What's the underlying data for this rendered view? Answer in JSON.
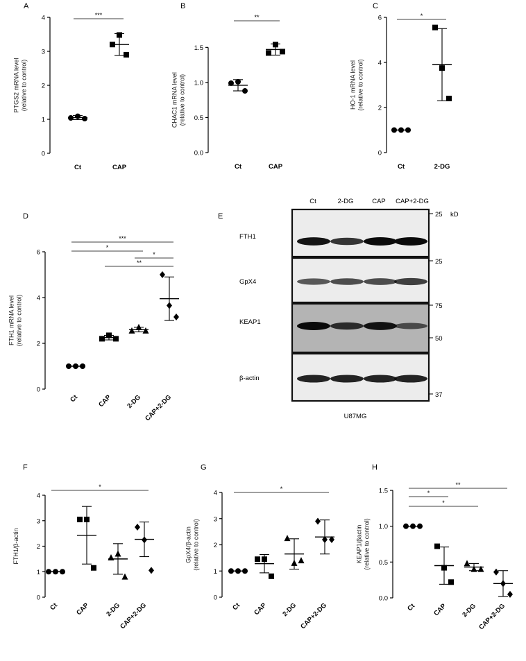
{
  "charts": [
    {
      "id": "A",
      "letter": "A",
      "type": "scatter",
      "ylabel_lines": [
        "PTGS2 mRNA level",
        "(relative to control)"
      ],
      "categories": [
        "Ct",
        "CAP"
      ],
      "ylim": [
        0,
        4
      ],
      "yticks": [
        0,
        1,
        2,
        3,
        4
      ],
      "tick_format": "int",
      "markers": [
        "circle",
        "square"
      ],
      "points": [
        [
          1.04,
          1.09,
          1.02
        ],
        [
          3.2,
          3.48,
          2.9
        ]
      ],
      "mean": [
        1.05,
        3.2
      ],
      "sd": [
        0.06,
        0.32
      ],
      "significance": [
        {
          "from": 0,
          "to": 1,
          "label": "***"
        }
      ],
      "rotate_labels": false
    },
    {
      "id": "B",
      "letter": "B",
      "type": "scatter",
      "ylabel_lines": [
        "CHAC1 mRNA level",
        "(relative to control)"
      ],
      "categories": [
        "Ct",
        "CAP"
      ],
      "ylim": [
        0,
        1.8
      ],
      "yticks": [
        0,
        0.5,
        1.0,
        1.5
      ],
      "tick_format": "1",
      "markers": [
        "circle",
        "square"
      ],
      "points": [
        [
          0.99,
          1.01,
          0.88
        ],
        [
          1.42,
          1.54,
          1.44
        ]
      ],
      "mean": [
        0.96,
        1.47
      ],
      "sd": [
        0.08,
        0.08
      ],
      "significance": [
        {
          "from": 0,
          "to": 1,
          "label": "**"
        }
      ],
      "rotate_labels": false
    },
    {
      "id": "C",
      "letter": "C",
      "type": "scatter",
      "ylabel_lines": [
        "HO-1 mRNA level",
        "(relative to control)"
      ],
      "categories": [
        "Ct",
        "2-DG"
      ],
      "ylim": [
        0,
        6
      ],
      "yticks": [
        0,
        2,
        4,
        6
      ],
      "tick_format": "int",
      "markers": [
        "circle",
        "square"
      ],
      "points": [
        [
          1.0,
          1.0,
          1.0
        ],
        [
          5.55,
          3.75,
          2.4
        ]
      ],
      "mean": [
        1.0,
        3.9
      ],
      "sd": [
        0.0,
        1.6
      ],
      "significance": [
        {
          "from": 0,
          "to": 1,
          "label": "*"
        }
      ],
      "rotate_labels": false
    },
    {
      "id": "D",
      "letter": "D",
      "type": "scatter",
      "ylabel_lines": [
        "FTH1 mRNA level",
        "(relative to control)"
      ],
      "categories": [
        "Ct",
        "CAP",
        "2-DG",
        "CAP+2-DG"
      ],
      "ylim": [
        0,
        6
      ],
      "yticks": [
        0,
        2,
        4,
        6
      ],
      "tick_format": "int",
      "markers": [
        "circle",
        "square",
        "triangle",
        "diamond"
      ],
      "points": [
        [
          1.0,
          1.0,
          1.0
        ],
        [
          2.2,
          2.35,
          2.2
        ],
        [
          2.55,
          2.7,
          2.55
        ],
        [
          5.0,
          3.65,
          3.15
        ]
      ],
      "mean": [
        1.0,
        2.25,
        2.6,
        3.95
      ],
      "sd": [
        0.0,
        0.1,
        0.1,
        0.95
      ],
      "significance": [
        {
          "from": 0,
          "to": 3,
          "label": "***"
        },
        {
          "from": 0,
          "to": 2,
          "label": "*"
        },
        {
          "from": 2,
          "to": 3,
          "label": "*"
        },
        {
          "from": 1,
          "to": 3,
          "label": "**"
        }
      ],
      "rotate_labels": true
    },
    {
      "id": "F",
      "letter": "F",
      "type": "scatter",
      "ylabel_lines": [
        "FTH1/β-actin"
      ],
      "categories": [
        "Ct",
        "CAP",
        "2-DG",
        "CAP+2-DG"
      ],
      "ylim": [
        0,
        4
      ],
      "yticks": [
        0,
        1,
        2,
        3,
        4
      ],
      "tick_format": "int",
      "markers": [
        "circle",
        "square",
        "triangle",
        "diamond"
      ],
      "points": [
        [
          1.0,
          1.0,
          1.0
        ],
        [
          3.05,
          3.05,
          1.15
        ],
        [
          1.55,
          1.7,
          0.8
        ],
        [
          2.75,
          2.25,
          1.05
        ]
      ],
      "mean": [
        1.0,
        2.43,
        1.5,
        2.27
      ],
      "sd": [
        0.0,
        1.13,
        0.6,
        0.68
      ],
      "significance": [
        {
          "from": 0,
          "to": 3,
          "label": "*"
        }
      ],
      "rotate_labels": true
    },
    {
      "id": "G",
      "letter": "G",
      "type": "scatter",
      "ylabel_lines": [
        "GpX4/β-actin",
        "(relative to control)"
      ],
      "categories": [
        "Ct",
        "CAP",
        "2-DG",
        "CAP+2-DG"
      ],
      "ylim": [
        0,
        4
      ],
      "yticks": [
        0,
        1,
        2,
        3,
        4
      ],
      "tick_format": "int",
      "markers": [
        "circle",
        "square",
        "triangle",
        "diamond"
      ],
      "points": [
        [
          1.0,
          1.0,
          1.0
        ],
        [
          1.45,
          1.45,
          0.8
        ],
        [
          2.25,
          1.3,
          1.4
        ],
        [
          2.9,
          2.2,
          2.2
        ]
      ],
      "mean": [
        1.0,
        1.28,
        1.65,
        2.3
      ],
      "sd": [
        0.0,
        0.35,
        0.58,
        0.65
      ],
      "significance": [
        {
          "from": 0,
          "to": 3,
          "label": "*"
        }
      ],
      "rotate_labels": true
    },
    {
      "id": "H",
      "letter": "H",
      "type": "scatter",
      "ylabel_lines": [
        "KEAP1/βactin",
        "(relative to control)"
      ],
      "categories": [
        "Ct",
        "CAP",
        "2-DG",
        "CAP+2-DG"
      ],
      "ylim": [
        0,
        1.5
      ],
      "yticks": [
        0,
        0.5,
        1.0,
        1.5
      ],
      "tick_format": "1",
      "markers": [
        "circle",
        "square",
        "triangle",
        "diamond"
      ],
      "points": [
        [
          1.0,
          1.0,
          1.0
        ],
        [
          0.72,
          0.42,
          0.22
        ],
        [
          0.48,
          0.4,
          0.4
        ],
        [
          0.36,
          0.2,
          0.05
        ]
      ],
      "mean": [
        1.0,
        0.45,
        0.43,
        0.2
      ],
      "sd": [
        0.0,
        0.26,
        0.05,
        0.18
      ],
      "significance": [
        {
          "from": 0,
          "to": 3,
          "label": "**"
        },
        {
          "from": 0,
          "to": 1,
          "label": "*"
        },
        {
          "from": 0,
          "to": 2,
          "label": "*"
        }
      ],
      "rotate_labels": true
    }
  ],
  "blot": {
    "letter": "E",
    "lanes": [
      "Ct",
      "2-DG",
      "CAP",
      "CAP+2-DG"
    ],
    "rows": [
      {
        "label": "FTH1",
        "tone": "light",
        "intensity": [
          0.95,
          0.75,
          1.0,
          1.0
        ]
      },
      {
        "label": "GpX4",
        "tone": "light",
        "intensity": [
          0.55,
          0.6,
          0.62,
          0.7
        ]
      },
      {
        "label": "KEAP1",
        "tone": "gray",
        "intensity": [
          1.0,
          0.75,
          0.95,
          0.5
        ]
      },
      {
        "label": "β-actin",
        "tone": "light",
        "intensity": [
          0.85,
          0.85,
          0.85,
          0.85
        ]
      }
    ],
    "mw_markers": [
      "25",
      "kD",
      "25",
      "75",
      "50",
      "37"
    ],
    "cell_line": "U87MG"
  }
}
